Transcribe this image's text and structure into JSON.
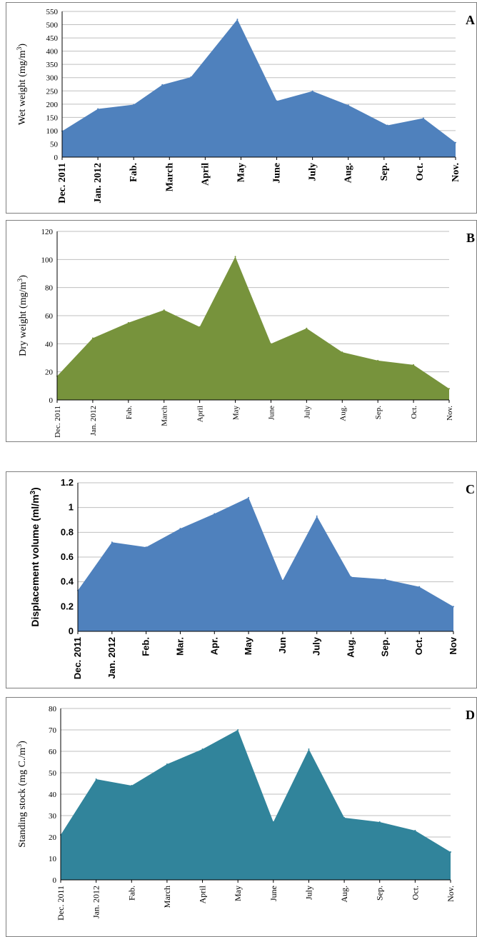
{
  "chart_data": [
    {
      "type": "area",
      "panel_label": "A",
      "ylabel": "Wet weight (mg/m3)",
      "ylabel_parts": [
        "Wet weight (mg/m",
        "3",
        ")"
      ],
      "ylim": [
        0,
        550
      ],
      "yticks": [
        0,
        50,
        100,
        150,
        200,
        250,
        300,
        350,
        400,
        450,
        500,
        550
      ],
      "grid": true,
      "categories": [
        "Dec. 2011",
        "Jan. 2012",
        "Fab.",
        "March",
        "April",
        "May",
        "June",
        "July",
        "Aug.",
        "Sep.",
        "Oct.",
        "Nov."
      ],
      "x": [
        0,
        1,
        2,
        3,
        4,
        5,
        6,
        7,
        8,
        9,
        10,
        11
      ],
      "values_x": [
        0,
        1,
        2,
        2.8,
        3.6,
        4.9,
        6.0,
        7.0,
        8.0,
        9.1,
        10.1,
        11
      ],
      "values": [
        98,
        182,
        198,
        273,
        302,
        520,
        212,
        249,
        196,
        120,
        147,
        55
      ],
      "color": "#4f81bd"
    },
    {
      "type": "area",
      "panel_label": "B",
      "ylabel": "Dry weight (mg/m3)",
      "ylabel_parts": [
        "Dry weight (mg/m",
        "3",
        ")"
      ],
      "ylim": [
        0,
        120
      ],
      "yticks": [
        0,
        20,
        40,
        60,
        80,
        100,
        120
      ],
      "grid": true,
      "categories": [
        "Dec. 2011",
        "Jan. 2012",
        "Fab.",
        "March",
        "April",
        "May",
        "June",
        "July",
        "Aug.",
        "Sep.",
        "Oct.",
        "Nov."
      ],
      "values_x": [
        0,
        1,
        2,
        3,
        4,
        5,
        6,
        7,
        8,
        9,
        10,
        11
      ],
      "values": [
        17,
        44,
        55,
        64,
        52,
        102,
        40,
        51,
        34,
        28,
        25,
        8
      ],
      "color": "#77933c"
    },
    {
      "type": "area",
      "panel_label": "C",
      "ylabel": "Displacement volume (ml/m3)",
      "ylabel_parts": [
        "Displacement volume (ml/m",
        "3",
        ")"
      ],
      "ylim": [
        0,
        1.2
      ],
      "yticks": [
        0,
        0.2,
        0.4,
        0.6,
        0.8,
        1,
        1.2
      ],
      "grid": true,
      "categories": [
        "Dec. 2011",
        "Jan. 2012",
        "Feb.",
        "Mar.",
        "Apr.",
        "May",
        "Jun",
        "July",
        "Aug.",
        "Sep.",
        "Oct.",
        "Nov"
      ],
      "values_x": [
        0,
        1,
        2,
        3,
        4,
        5,
        6,
        7,
        8,
        9,
        10,
        11
      ],
      "values": [
        0.33,
        0.72,
        0.68,
        0.83,
        0.95,
        1.08,
        0.41,
        0.93,
        0.44,
        0.42,
        0.36,
        0.2
      ],
      "color": "#4f81bd"
    },
    {
      "type": "area",
      "panel_label": "D",
      "ylabel": "Standing stock (mg C./m3)",
      "ylabel_parts": [
        "Standing stock (mg C./m",
        "3",
        ")"
      ],
      "ylim": [
        0,
        80
      ],
      "yticks": [
        0,
        10,
        20,
        30,
        40,
        50,
        60,
        70,
        80
      ],
      "grid": true,
      "categories": [
        "Dec. 2011",
        "Jan. 2012",
        "Fab.",
        "March",
        "April",
        "May",
        "June",
        "July",
        "Aug.",
        "Sep.",
        "Oct.",
        "Nov."
      ],
      "values_x": [
        0,
        1,
        2,
        3,
        4,
        5,
        6,
        7,
        8,
        9,
        10,
        11
      ],
      "values": [
        21,
        47,
        44,
        54,
        61,
        70,
        27,
        61,
        29,
        27,
        23,
        13
      ],
      "color": "#31849b"
    }
  ]
}
